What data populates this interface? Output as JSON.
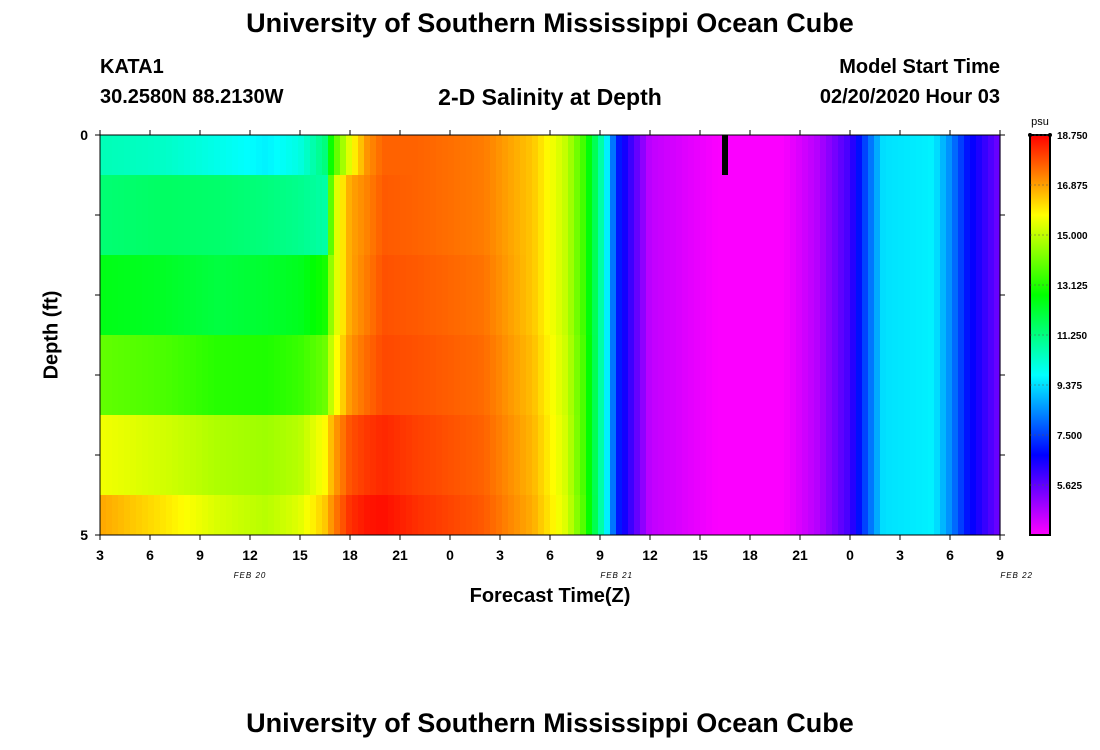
{
  "header": {
    "title": "University of Southern Mississippi Ocean Cube",
    "station": "KATA1",
    "coords": "30.2580N 88.2130W",
    "plot_title": "2-D Salinity at Depth",
    "model_start_label": "Model Start Time",
    "model_start_value": "02/20/2020 Hour 03"
  },
  "footer": {
    "title": "University of Southern Mississippi Ocean Cube"
  },
  "colorbar": {
    "unit": "psu",
    "ticks": [
      "18.750",
      "16.875",
      "15.000",
      "13.125",
      "11.250",
      "9.375",
      "7.500",
      "5.625"
    ],
    "tick_values": [
      18.75,
      16.875,
      15.0,
      13.125,
      11.25,
      9.375,
      7.5,
      5.625
    ],
    "min": 3.75,
    "max": 18.75,
    "colormap": [
      "#ff00ff",
      "#8000ff",
      "#0000ff",
      "#0080ff",
      "#00ffff",
      "#00ff80",
      "#00ff00",
      "#80ff00",
      "#ffff00",
      "#ff8000",
      "#ff0000"
    ]
  },
  "chart_data": {
    "type": "heatmap",
    "title": "2-D Salinity at Depth",
    "xlabel": "Forecast Time(Z)",
    "ylabel": "Depth (ft)",
    "x_ticks": [
      "3",
      "6",
      "9",
      "12",
      "15",
      "18",
      "21",
      "0",
      "3",
      "6",
      "9",
      "12",
      "15",
      "18",
      "21",
      "0",
      "3",
      "6",
      "9"
    ],
    "x_date_labels": [
      {
        "label": "FEB 20",
        "x_hour": 12
      },
      {
        "label": "FEB 21",
        "x_hour": 34
      },
      {
        "label": "FEB 22",
        "x_hour": 58
      }
    ],
    "x_hours": [
      3,
      6,
      9,
      12,
      15,
      18,
      21,
      24,
      27,
      30,
      33,
      36,
      39,
      42,
      45,
      48,
      51,
      54,
      57
    ],
    "xlim": [
      3,
      57
    ],
    "y_ticks": [
      "0",
      "5"
    ],
    "ylim": [
      0,
      5
    ],
    "unit": "psu",
    "depth_bands": [
      {
        "top": 0.0,
        "bottom": 0.5
      },
      {
        "top": 0.5,
        "bottom": 1.5
      },
      {
        "top": 1.5,
        "bottom": 2.5
      },
      {
        "top": 2.5,
        "bottom": 3.5
      },
      {
        "top": 3.5,
        "bottom": 4.5
      },
      {
        "top": 4.5,
        "bottom": 5.0
      }
    ],
    "profile_times": [
      3,
      7,
      10,
      13,
      15,
      16.5,
      17,
      18,
      19,
      20,
      22,
      26,
      29,
      31,
      32,
      33,
      33.5,
      34,
      36,
      40,
      44,
      46,
      48,
      50,
      53,
      54,
      55,
      57
    ],
    "salinity_by_band": [
      [
        10.6,
        10.4,
        10.0,
        9.6,
        10.1,
        11.3,
        13.5,
        15.5,
        17.0,
        17.6,
        17.6,
        17.3,
        16.4,
        15.0,
        13.5,
        11.0,
        9.3,
        7.2,
        4.5,
        3.8,
        3.8,
        4.6,
        6.0,
        9.4,
        9.6,
        8.4,
        7.0,
        5.4
      ],
      [
        11.4,
        11.6,
        11.5,
        11.3,
        11.1,
        10.8,
        15.0,
        16.8,
        17.2,
        17.7,
        17.6,
        17.3,
        16.4,
        15.0,
        13.5,
        11.0,
        9.3,
        7.2,
        4.5,
        3.8,
        3.8,
        4.6,
        6.0,
        9.4,
        9.6,
        8.4,
        7.0,
        5.4
      ],
      [
        12.5,
        12.3,
        12.0,
        12.2,
        12.4,
        13.0,
        15.0,
        16.8,
        17.3,
        17.8,
        17.7,
        17.4,
        16.4,
        15.0,
        13.5,
        11.0,
        9.3,
        7.2,
        4.5,
        3.8,
        3.8,
        4.6,
        6.0,
        9.4,
        9.6,
        8.4,
        7.0,
        5.4
      ],
      [
        13.9,
        13.6,
        13.2,
        13.1,
        13.4,
        14.0,
        15.4,
        17.0,
        17.5,
        17.9,
        17.8,
        17.5,
        16.5,
        15.1,
        13.6,
        11.0,
        9.3,
        7.2,
        4.5,
        3.8,
        3.8,
        4.6,
        6.0,
        9.4,
        9.6,
        8.4,
        7.0,
        5.4
      ],
      [
        15.6,
        15.2,
        14.8,
        14.6,
        14.9,
        15.8,
        16.8,
        17.8,
        18.1,
        18.3,
        18.0,
        17.6,
        16.6,
        15.2,
        13.6,
        11.0,
        9.3,
        7.2,
        4.5,
        3.8,
        3.8,
        4.6,
        6.0,
        9.4,
        9.6,
        8.4,
        7.0,
        5.4
      ],
      [
        16.8,
        16.0,
        15.3,
        14.9,
        15.4,
        16.4,
        17.2,
        18.2,
        18.5,
        18.6,
        18.2,
        17.7,
        16.7,
        15.3,
        13.7,
        11.0,
        9.3,
        7.2,
        4.5,
        3.8,
        3.8,
        4.6,
        6.0,
        9.4,
        9.6,
        8.4,
        7.0,
        5.4
      ]
    ],
    "marker": {
      "x_hour": 40.5,
      "depth_from": 0.0,
      "depth_to": 0.5
    }
  }
}
